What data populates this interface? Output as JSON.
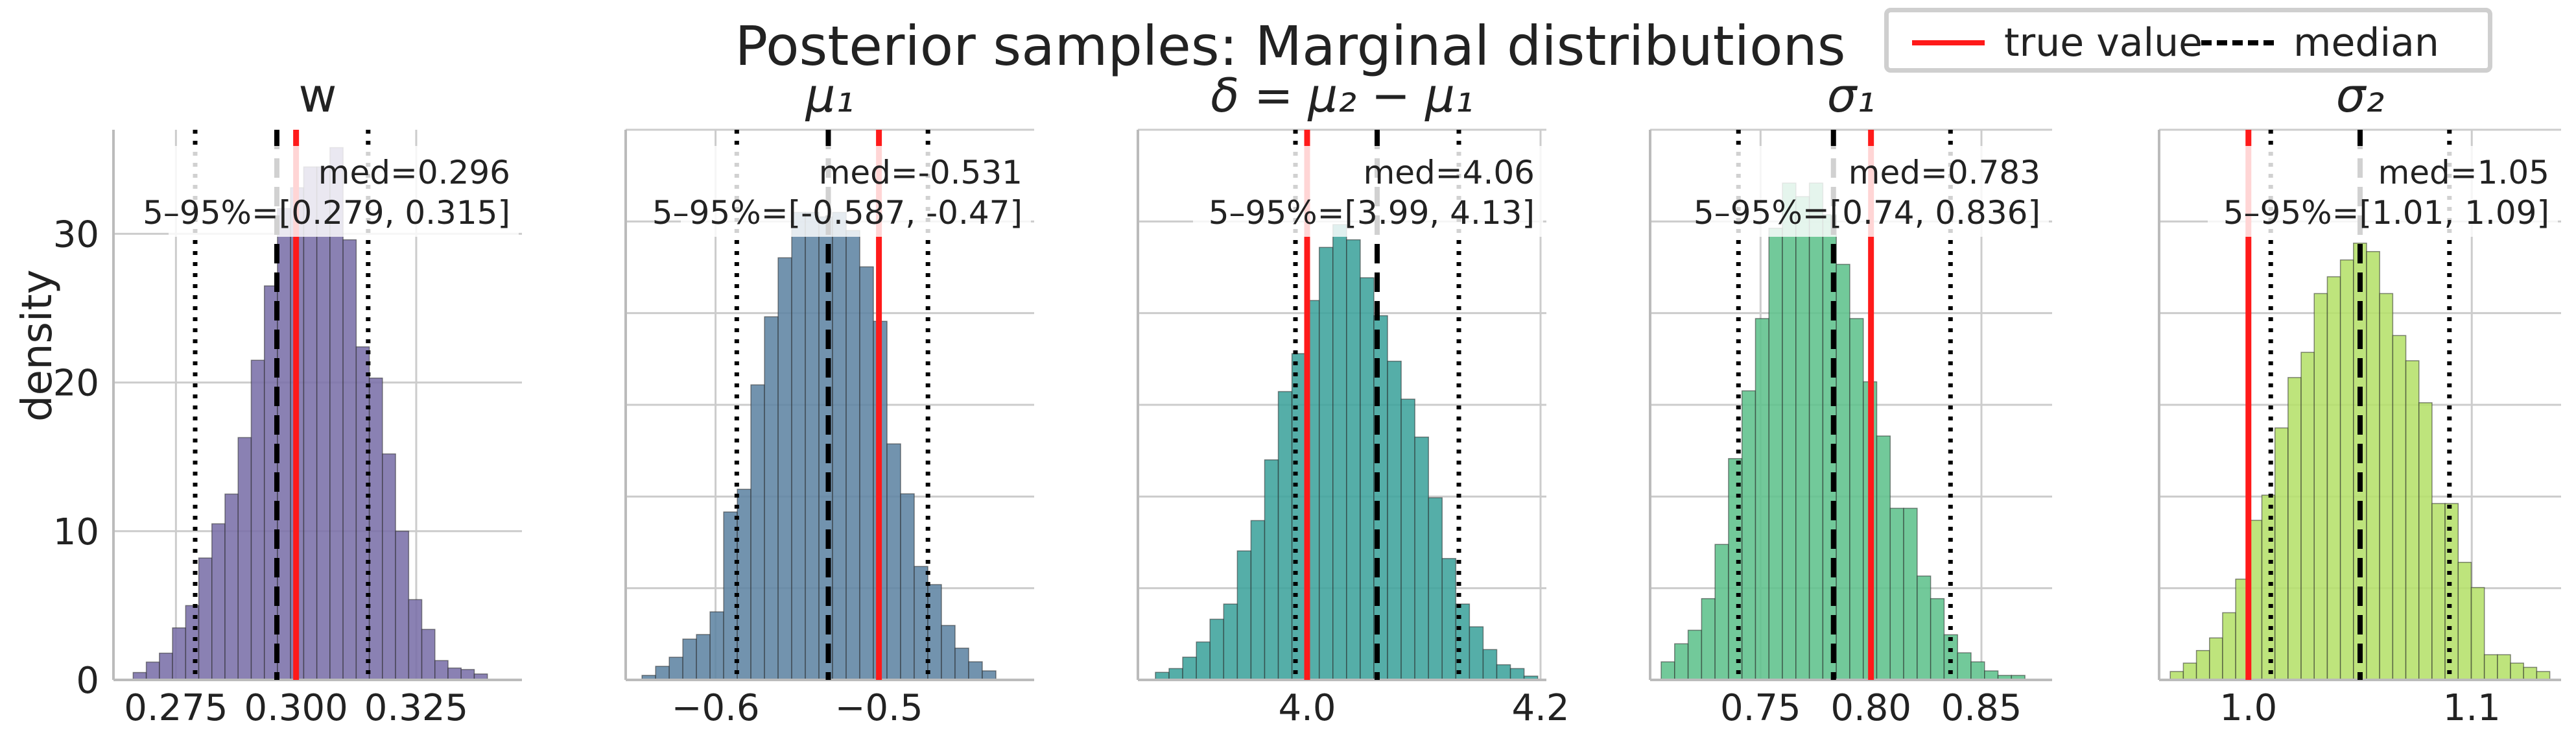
{
  "figure": {
    "suptitle": "Posterior samples: Marginal distributions",
    "ylabel": "density",
    "legend": [
      {
        "label": "true value",
        "color": "#ff1a1a",
        "style": "solid"
      },
      {
        "label": "median",
        "color": "#000000",
        "style": "dashed"
      }
    ]
  },
  "chart_data": [
    {
      "type": "bar",
      "title": "w",
      "color": "#7a6fa8",
      "xlim": [
        0.262,
        0.347
      ],
      "ylim": [
        0,
        37
      ],
      "xticks": [
        0.275,
        0.3,
        0.325
      ],
      "xticklabels": [
        "0.275",
        "0.300",
        "0.325"
      ],
      "yticks": [
        0,
        10,
        20,
        30
      ],
      "yticklabels": [
        "0",
        "10",
        "20",
        "30"
      ],
      "true_value": 0.3,
      "median": 0.296,
      "q05": 0.279,
      "q95": 0.315,
      "annotation": [
        "med=0.296",
        "5–95%=[0.279, 0.315]"
      ],
      "bins_start": 0.2661,
      "bin_width": 0.00273,
      "values": [
        0.5,
        1.2,
        1.8,
        3.5,
        5.0,
        8.2,
        10.5,
        12.5,
        16.3,
        21.5,
        26.5,
        31.7,
        33.1,
        34.5,
        34.5,
        35.8,
        29.6,
        22.4,
        20.3,
        15.2,
        10.0,
        5.4,
        3.4,
        1.3,
        0.8,
        0.7,
        0.4
      ]
    },
    {
      "type": "bar",
      "title": "μ₁",
      "color": "#5e84a3",
      "xlim": [
        -0.655,
        -0.405
      ],
      "ylim": [
        0,
        12.12
      ],
      "xticks": [
        -0.6,
        -0.5
      ],
      "xticklabels": [
        "−0.6",
        "−0.5"
      ],
      "yticks": [],
      "yticklabels": [],
      "true_value": -0.5,
      "median": -0.531,
      "q05": -0.587,
      "q95": -0.47,
      "annotation": [
        "med=-0.531",
        "5–95%=[-0.587, -0.47]"
      ],
      "bins_start": -0.645,
      "bin_width": 0.00833,
      "values": [
        0.1,
        0.3,
        0.5,
        0.9,
        1.0,
        1.5,
        3.7,
        4.2,
        6.5,
        8.0,
        9.3,
        10.3,
        10.3,
        10.2,
        10.3,
        9.9,
        9.1,
        7.9,
        5.2,
        4.1,
        2.5,
        2.1,
        1.2,
        0.7,
        0.4,
        0.2
      ]
    },
    {
      "type": "bar",
      "title": "δ = μ₂ − μ₁",
      "color": "#3ea39c",
      "xlim": [
        3.855,
        4.205
      ],
      "ylim": [
        0,
        7.25
      ],
      "xticks": [
        4.0,
        4.2
      ],
      "xticklabels": [
        "4.0",
        "4.2"
      ],
      "yticks": [],
      "yticklabels": [],
      "true_value": 4.0,
      "median": 4.06,
      "q05": 3.99,
      "q95": 4.13,
      "annotation": [
        "med=4.06",
        "5–95%=[3.99, 4.13]"
      ],
      "bins_start": 3.87,
      "bin_width": 0.0117,
      "values": [
        0.1,
        0.15,
        0.3,
        0.5,
        0.8,
        1.0,
        1.7,
        2.1,
        2.9,
        3.8,
        4.3,
        5.0,
        5.7,
        6.0,
        5.8,
        5.3,
        4.8,
        4.2,
        3.7,
        3.2,
        2.4,
        1.6,
        1.0,
        0.7,
        0.4,
        0.2,
        0.15,
        0.05
      ]
    },
    {
      "type": "bar",
      "title": "σ₁",
      "color": "#5ec28c",
      "xlim": [
        0.7,
        0.882
      ],
      "ylim": [
        0,
        12.18
      ],
      "xticks": [
        0.75,
        0.8,
        0.85
      ],
      "xticklabels": [
        "0.75",
        "0.80",
        "0.85"
      ],
      "yticks": [],
      "yticklabels": [],
      "true_value": 0.8,
      "median": 0.783,
      "q05": 0.74,
      "q95": 0.836,
      "annotation": [
        "med=0.783",
        "5–95%=[0.74, 0.836]"
      ],
      "bins_start": 0.705,
      "bin_width": 0.0061,
      "values": [
        0.4,
        0.8,
        1.1,
        1.8,
        3.0,
        4.9,
        6.4,
        8.0,
        10.0,
        11.0,
        10.7,
        11.0,
        10.3,
        9.2,
        8.0,
        6.6,
        5.4,
        3.8,
        3.8,
        2.3,
        1.8,
        1.0,
        0.6,
        0.4,
        0.2,
        0.1,
        0.1
      ]
    },
    {
      "type": "bar",
      "title": "σ₂",
      "color": "#b5e06a",
      "xlim": [
        0.96,
        1.14
      ],
      "ylim": [
        0,
        6.55
      ],
      "xticks": [
        1.0,
        1.1
      ],
      "xticklabels": [
        "1.0",
        "1.1"
      ],
      "yticks": [],
      "yticklabels": [],
      "true_value": 1.0,
      "median": 1.05,
      "q05": 1.01,
      "q95": 1.09,
      "annotation": [
        "med=1.05",
        "5–95%=[1.01, 1.09]"
      ],
      "bins_start": 0.965,
      "bin_width": 0.00586,
      "values": [
        0.1,
        0.2,
        0.35,
        0.5,
        0.8,
        1.2,
        1.9,
        2.2,
        3.0,
        3.6,
        3.9,
        4.6,
        4.8,
        5.0,
        5.2,
        5.1,
        4.6,
        4.1,
        3.8,
        3.3,
        2.1,
        2.1,
        1.4,
        1.1,
        0.3,
        0.3,
        0.2,
        0.15,
        0.1
      ]
    }
  ]
}
